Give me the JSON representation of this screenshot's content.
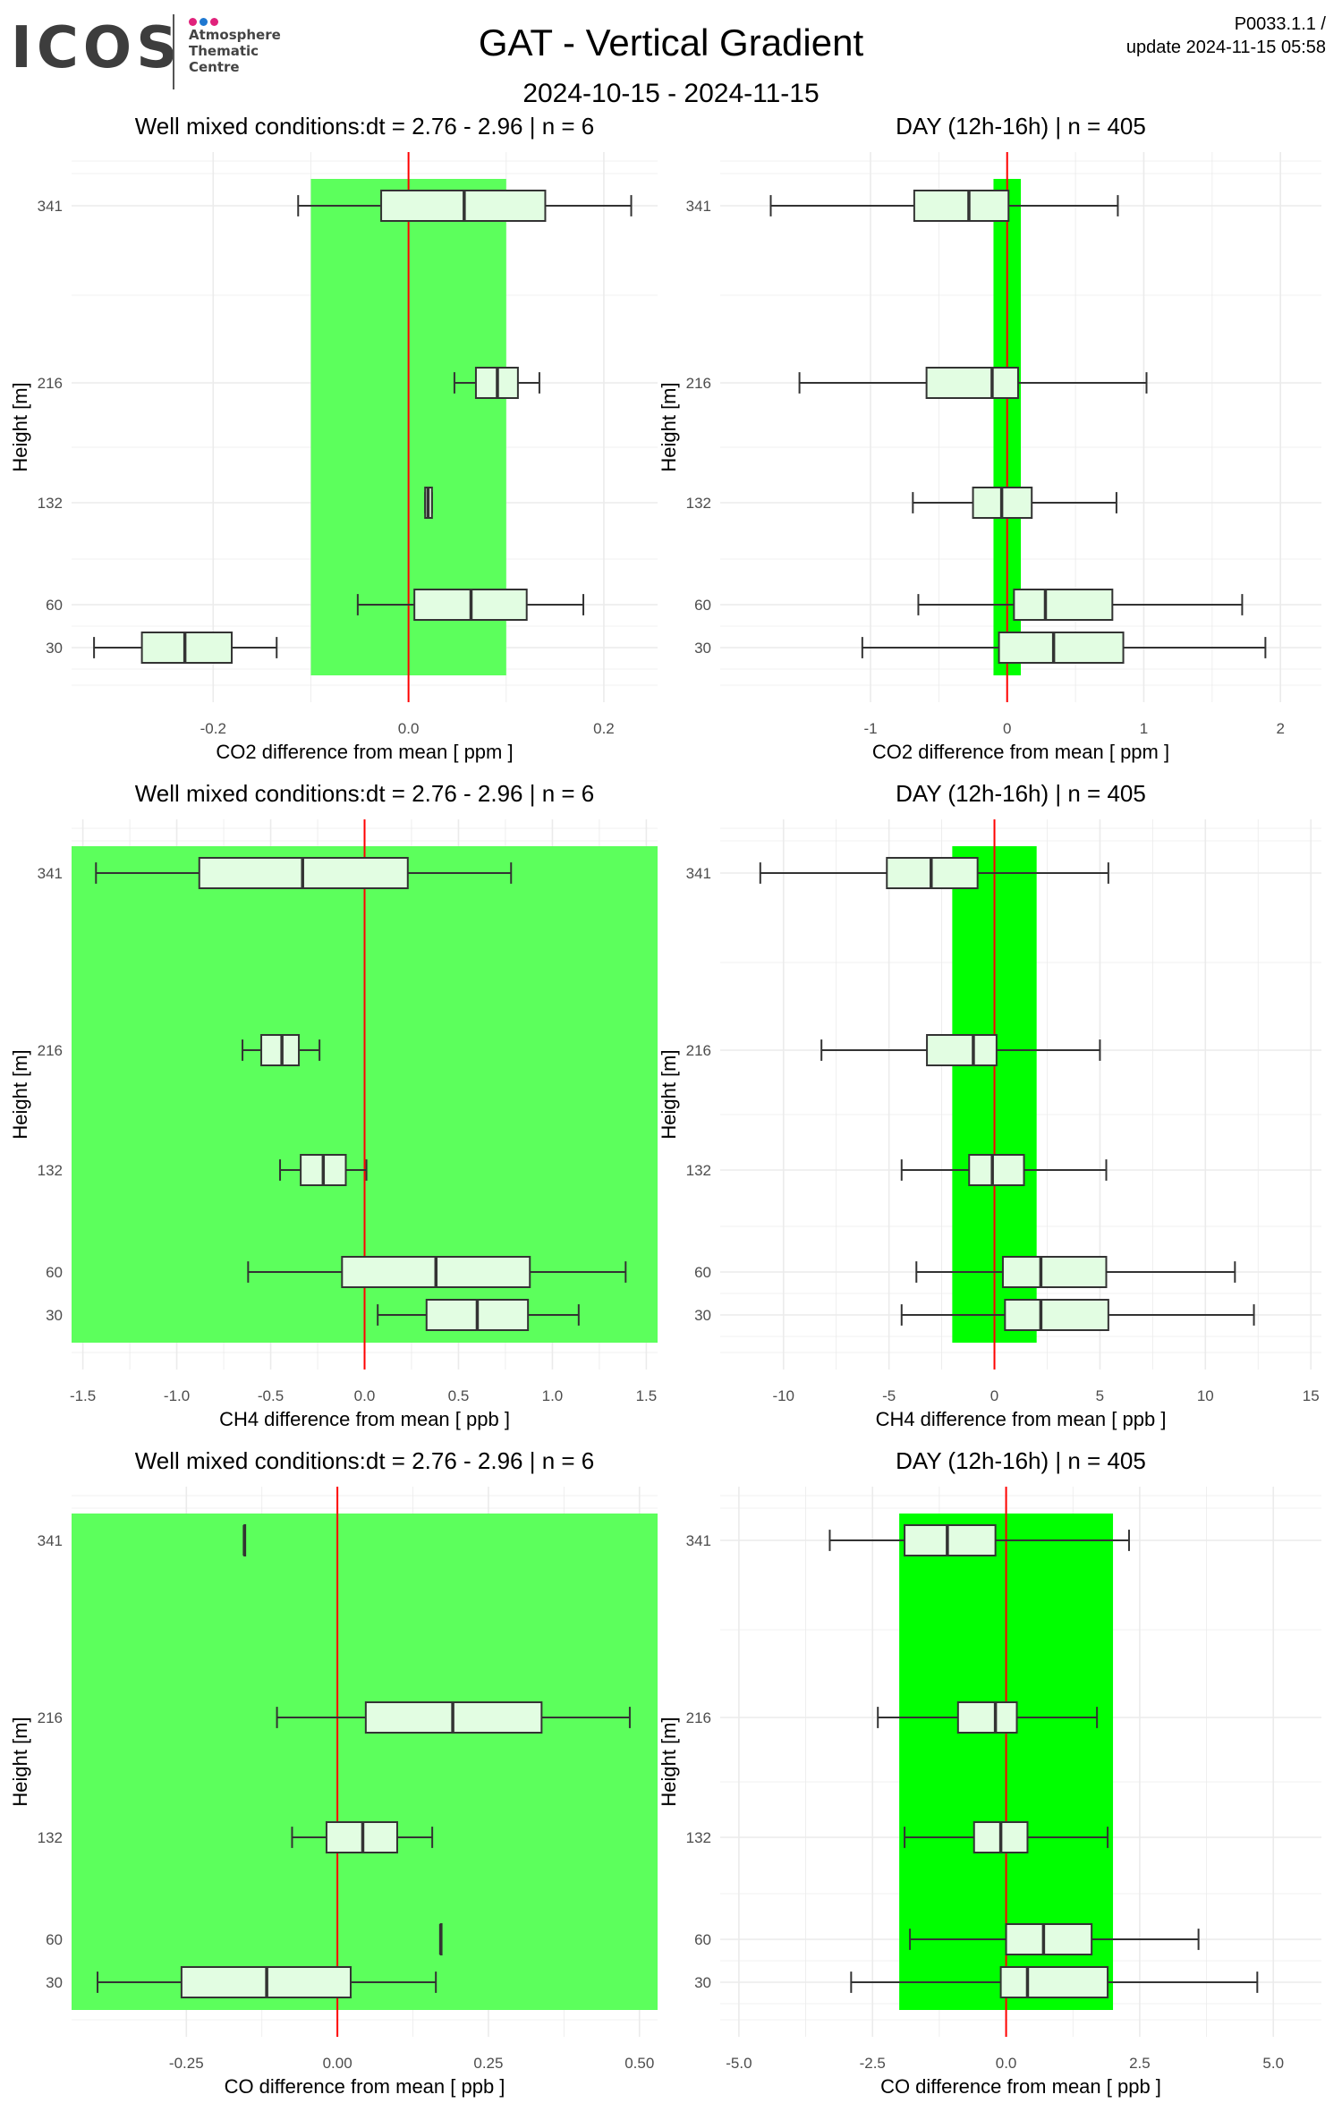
{
  "header": {
    "logo": {
      "mark": "ICOS",
      "lines": [
        "Atmosphere",
        "Thematic",
        "Centre"
      ],
      "dot_colors": [
        "#e0227b",
        "#1f78d1",
        "#e0227b"
      ]
    },
    "title": "GAT - Vertical Gradient",
    "subtitle": "2024-10-15 - 2024-11-15",
    "meta_line1": "P0033.1.1 /",
    "meta_line2": "update  2024-11-15 05:58"
  },
  "colors": {
    "band_well_mixed": "#5cff5c",
    "band_day": "#00ff00",
    "box_fill": "#e2fde2",
    "zero_line": "#ff0000",
    "grid": "#ebebeb",
    "text": "#000000",
    "axis_text": "#4d4d4d"
  },
  "chart_data": [
    {
      "id": "co2-well-mixed",
      "type": "boxplot",
      "title": "Well mixed conditions:dt = 2.76 - 2.96 | n = 6",
      "xlabel": "CO2  difference from mean [ ppm ]",
      "ylabel": "Height [m]",
      "xlim": [
        -0.345,
        0.255
      ],
      "xticks": [
        -0.2,
        0.0,
        0.2
      ],
      "xtick_labels": [
        "-0.2",
        "0.0",
        "0.2"
      ],
      "band": [
        -0.1,
        0.1
      ],
      "band_type": "well_mixed",
      "zero_line": 0,
      "heights": [
        341,
        216,
        132,
        60,
        30
      ],
      "boxes": [
        {
          "height": 341,
          "whisker_low": -0.113,
          "q1": -0.028,
          "median": 0.057,
          "q3": 0.14,
          "whisker_high": 0.228
        },
        {
          "height": 216,
          "whisker_low": 0.047,
          "q1": 0.069,
          "median": 0.091,
          "q3": 0.112,
          "whisker_high": 0.134
        },
        {
          "height": 132,
          "whisker_low": 0.017,
          "q1": 0.017,
          "median": 0.02,
          "q3": 0.024,
          "whisker_high": 0.024
        },
        {
          "height": 60,
          "whisker_low": -0.052,
          "q1": 0.006,
          "median": 0.064,
          "q3": 0.121,
          "whisker_high": 0.179
        },
        {
          "height": 30,
          "whisker_low": -0.322,
          "q1": -0.273,
          "median": -0.229,
          "q3": -0.181,
          "whisker_high": -0.135
        }
      ]
    },
    {
      "id": "co2-day",
      "type": "boxplot",
      "title": "DAY (12h-16h) | n = 405",
      "xlabel": "CO2  difference from mean [ ppm ]",
      "ylabel": "Height [m]",
      "xlim": [
        -2.1,
        2.3
      ],
      "xticks": [
        -1,
        0,
        1,
        2
      ],
      "xtick_labels": [
        "-1",
        "0",
        "1",
        "2"
      ],
      "band": [
        -0.1,
        0.1
      ],
      "band_type": "day",
      "zero_line": 0,
      "heights": [
        341,
        216,
        132,
        60,
        30
      ],
      "boxes": [
        {
          "height": 341,
          "whisker_low": -1.73,
          "q1": -0.68,
          "median": -0.28,
          "q3": 0.01,
          "whisker_high": 0.81
        },
        {
          "height": 216,
          "whisker_low": -1.52,
          "q1": -0.59,
          "median": -0.11,
          "q3": 0.08,
          "whisker_high": 1.02
        },
        {
          "height": 132,
          "whisker_low": -0.69,
          "q1": -0.25,
          "median": -0.04,
          "q3": 0.18,
          "whisker_high": 0.8
        },
        {
          "height": 60,
          "whisker_low": -0.65,
          "q1": 0.05,
          "median": 0.28,
          "q3": 0.77,
          "whisker_high": 1.72
        },
        {
          "height": 30,
          "whisker_low": -1.06,
          "q1": -0.06,
          "median": 0.34,
          "q3": 0.85,
          "whisker_high": 1.89
        }
      ]
    },
    {
      "id": "ch4-well-mixed",
      "type": "boxplot",
      "title": "Well mixed conditions:dt = 2.76 - 2.96 | n = 6",
      "xlabel": "CH4  difference from mean [ ppb ]",
      "ylabel": "Height [m]",
      "xlim": [
        -1.56,
        1.56
      ],
      "xticks": [
        -1.5,
        -1.0,
        -0.5,
        0.0,
        0.5,
        1.0,
        1.5
      ],
      "xtick_labels": [
        "-1.5",
        "-1.0",
        "-0.5",
        "0.0",
        "0.5",
        "1.0",
        "1.5"
      ],
      "band": [
        -1.56,
        1.56
      ],
      "band_type": "well_mixed",
      "zero_line": 0,
      "heights": [
        341,
        216,
        132,
        60,
        30
      ],
      "boxes": [
        {
          "height": 341,
          "whisker_low": -1.43,
          "q1": -0.88,
          "median": -0.33,
          "q3": 0.23,
          "whisker_high": 0.78
        },
        {
          "height": 216,
          "whisker_low": -0.65,
          "q1": -0.55,
          "median": -0.44,
          "q3": -0.35,
          "whisker_high": -0.24
        },
        {
          "height": 132,
          "whisker_low": -0.45,
          "q1": -0.34,
          "median": -0.22,
          "q3": -0.1,
          "whisker_high": 0.01
        },
        {
          "height": 60,
          "whisker_low": -0.62,
          "q1": -0.12,
          "median": 0.38,
          "q3": 0.88,
          "whisker_high": 1.39
        },
        {
          "height": 30,
          "whisker_low": 0.07,
          "q1": 0.33,
          "median": 0.6,
          "q3": 0.87,
          "whisker_high": 1.14
        }
      ]
    },
    {
      "id": "ch4-day",
      "type": "boxplot",
      "title": "DAY (12h-16h) | n = 405",
      "xlabel": "CH4  difference from mean [ ppb ]",
      "ylabel": "Height [m]",
      "xlim": [
        -13,
        15.5
      ],
      "xticks": [
        -10,
        -5,
        0,
        5,
        10,
        15
      ],
      "xtick_labels": [
        "-10",
        "-5",
        "0",
        "5",
        "10",
        "15"
      ],
      "band": [
        -2,
        2
      ],
      "band_type": "day",
      "zero_line": 0,
      "heights": [
        341,
        216,
        132,
        60,
        30
      ],
      "boxes": [
        {
          "height": 341,
          "whisker_low": -11.1,
          "q1": -5.1,
          "median": -3.0,
          "q3": -0.8,
          "whisker_high": 5.4
        },
        {
          "height": 216,
          "whisker_low": -8.2,
          "q1": -3.2,
          "median": -1.0,
          "q3": 0.1,
          "whisker_high": 5.0
        },
        {
          "height": 132,
          "whisker_low": -4.4,
          "q1": -1.2,
          "median": -0.1,
          "q3": 1.4,
          "whisker_high": 5.3
        },
        {
          "height": 60,
          "whisker_low": -3.7,
          "q1": 0.4,
          "median": 2.2,
          "q3": 5.3,
          "whisker_high": 11.4
        },
        {
          "height": 30,
          "whisker_low": -4.4,
          "q1": 0.5,
          "median": 2.2,
          "q3": 5.4,
          "whisker_high": 12.3
        }
      ]
    },
    {
      "id": "co-well-mixed",
      "type": "boxplot",
      "title": "Well mixed conditions:dt = 2.76 - 2.96 | n = 6",
      "xlabel": "CO  difference from mean [ ppb ]",
      "ylabel": "Height [m]",
      "xlim": [
        -0.44,
        0.53
      ],
      "xticks": [
        -0.25,
        0.0,
        0.25,
        0.5
      ],
      "xtick_labels": [
        "-0.25",
        "0.00",
        "0.25",
        "0.50"
      ],
      "band": [
        -0.44,
        0.53
      ],
      "band_type": "well_mixed",
      "zero_line": 0,
      "heights": [
        341,
        216,
        132,
        60,
        30
      ],
      "boxes": [
        {
          "height": 341,
          "whisker_low": -0.154,
          "q1": -0.154,
          "median": -0.154,
          "q3": -0.154,
          "whisker_high": -0.154
        },
        {
          "height": 216,
          "whisker_low": -0.1,
          "q1": 0.047,
          "median": 0.191,
          "q3": 0.338,
          "whisker_high": 0.484
        },
        {
          "height": 132,
          "whisker_low": -0.075,
          "q1": -0.018,
          "median": 0.042,
          "q3": 0.099,
          "whisker_high": 0.157
        },
        {
          "height": 60,
          "whisker_low": 0.171,
          "q1": 0.171,
          "median": 0.171,
          "q3": 0.171,
          "whisker_high": 0.171
        },
        {
          "height": 30,
          "whisker_low": -0.397,
          "q1": -0.258,
          "median": -0.117,
          "q3": 0.022,
          "whisker_high": 0.163
        }
      ]
    },
    {
      "id": "co-day",
      "type": "boxplot",
      "title": "DAY (12h-16h) | n = 405",
      "xlabel": "CO  difference from mean [ ppb ]",
      "ylabel": "Height [m]",
      "xlim": [
        -5.35,
        5.9
      ],
      "xticks": [
        -5.0,
        -2.5,
        0.0,
        2.5,
        5.0
      ],
      "xtick_labels": [
        "-5.0",
        "-2.5",
        "0.0",
        "2.5",
        "5.0"
      ],
      "band": [
        -2,
        2
      ],
      "band_type": "day",
      "zero_line": 0,
      "heights": [
        341,
        216,
        132,
        60,
        30
      ],
      "boxes": [
        {
          "height": 341,
          "whisker_low": -3.3,
          "q1": -1.9,
          "median": -1.1,
          "q3": -0.2,
          "whisker_high": 2.3
        },
        {
          "height": 216,
          "whisker_low": -2.4,
          "q1": -0.9,
          "median": -0.2,
          "q3": 0.2,
          "whisker_high": 1.7
        },
        {
          "height": 132,
          "whisker_low": -1.9,
          "q1": -0.6,
          "median": -0.1,
          "q3": 0.4,
          "whisker_high": 1.9
        },
        {
          "height": 60,
          "whisker_low": -1.8,
          "q1": 0.0,
          "median": 0.7,
          "q3": 1.6,
          "whisker_high": 3.6
        },
        {
          "height": 30,
          "whisker_low": -2.9,
          "q1": -0.1,
          "median": 0.4,
          "q3": 1.9,
          "whisker_high": 4.7
        }
      ]
    }
  ]
}
